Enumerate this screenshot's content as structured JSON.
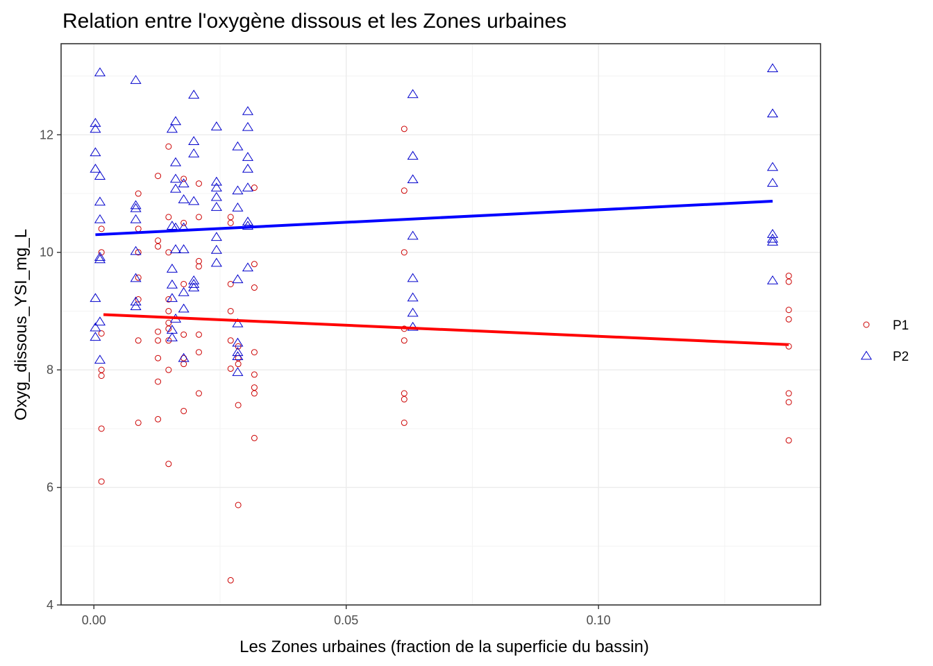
{
  "chart_data": {
    "type": "scatter",
    "title": "Relation entre l'oxygène dissous et les Zones urbaines",
    "xlabel": "Les Zones urbaines (fraction de la superficie du bassin)",
    "ylabel": "Oxyg_dissous_YSI_mg_L",
    "xlim": [
      -0.0065,
      0.144
    ],
    "ylim": [
      4.0,
      13.55
    ],
    "x_ticks": [
      0.0,
      0.05,
      0.1
    ],
    "x_tick_labels": [
      "0.00",
      "0.05",
      "0.10"
    ],
    "y_ticks": [
      4,
      6,
      8,
      10,
      12
    ],
    "y_tick_labels": [
      "4",
      "6",
      "8",
      "10",
      "12"
    ],
    "grid": true,
    "legend_position": "right",
    "series": [
      {
        "name": "P1",
        "marker": "circle",
        "color": "#cc0000",
        "trend_color": "#ff0000",
        "trend": {
          "x": [
            0.0019,
            0.1377
          ],
          "y": [
            8.94,
            8.43
          ]
        },
        "points": [
          [
            0.0015,
            10.4
          ],
          [
            0.0015,
            10.0
          ],
          [
            0.0015,
            8.62
          ],
          [
            0.0015,
            8.0
          ],
          [
            0.0015,
            7.9
          ],
          [
            0.0015,
            7.0
          ],
          [
            0.0015,
            6.1
          ],
          [
            0.0088,
            11.0
          ],
          [
            0.0088,
            10.4
          ],
          [
            0.0088,
            10.0
          ],
          [
            0.0088,
            9.57
          ],
          [
            0.0088,
            9.2
          ],
          [
            0.0088,
            8.5
          ],
          [
            0.0088,
            7.1
          ],
          [
            0.0127,
            11.3
          ],
          [
            0.0127,
            10.2
          ],
          [
            0.0127,
            10.1
          ],
          [
            0.0127,
            8.65
          ],
          [
            0.0127,
            8.5
          ],
          [
            0.0127,
            8.2
          ],
          [
            0.0127,
            7.8
          ],
          [
            0.0127,
            7.16
          ],
          [
            0.0148,
            11.8
          ],
          [
            0.0148,
            10.6
          ],
          [
            0.0148,
            10.0
          ],
          [
            0.0148,
            9.2
          ],
          [
            0.0148,
            9.0
          ],
          [
            0.0148,
            8.8
          ],
          [
            0.0148,
            8.7
          ],
          [
            0.0148,
            8.5
          ],
          [
            0.0148,
            8.0
          ],
          [
            0.0148,
            6.4
          ],
          [
            0.0178,
            11.25
          ],
          [
            0.0178,
            10.5
          ],
          [
            0.0178,
            9.46
          ],
          [
            0.0178,
            8.6
          ],
          [
            0.0178,
            8.2
          ],
          [
            0.0178,
            8.1
          ],
          [
            0.0178,
            7.3
          ],
          [
            0.0208,
            11.17
          ],
          [
            0.0208,
            10.6
          ],
          [
            0.0208,
            9.85
          ],
          [
            0.0208,
            9.76
          ],
          [
            0.0208,
            8.6
          ],
          [
            0.0208,
            8.3
          ],
          [
            0.0208,
            7.6
          ],
          [
            0.0271,
            10.6
          ],
          [
            0.0271,
            10.5
          ],
          [
            0.0271,
            9.46
          ],
          [
            0.0271,
            9.0
          ],
          [
            0.0271,
            8.5
          ],
          [
            0.0271,
            8.02
          ],
          [
            0.0271,
            4.42
          ],
          [
            0.0286,
            8.4
          ],
          [
            0.0286,
            8.2
          ],
          [
            0.0286,
            8.1
          ],
          [
            0.0286,
            7.4
          ],
          [
            0.0286,
            5.7
          ],
          [
            0.0318,
            11.1
          ],
          [
            0.0318,
            9.8
          ],
          [
            0.0318,
            9.4
          ],
          [
            0.0318,
            8.3
          ],
          [
            0.0318,
            7.92
          ],
          [
            0.0318,
            7.7
          ],
          [
            0.0318,
            7.6
          ],
          [
            0.0318,
            6.84
          ],
          [
            0.0615,
            12.1
          ],
          [
            0.0615,
            11.05
          ],
          [
            0.0615,
            10.0
          ],
          [
            0.0615,
            8.7
          ],
          [
            0.0615,
            8.5
          ],
          [
            0.0615,
            7.6
          ],
          [
            0.0615,
            7.5
          ],
          [
            0.0615,
            7.1
          ],
          [
            0.1377,
            9.6
          ],
          [
            0.1377,
            9.5
          ],
          [
            0.1377,
            9.02
          ],
          [
            0.1377,
            8.86
          ],
          [
            0.1377,
            8.4
          ],
          [
            0.1377,
            7.6
          ],
          [
            0.1377,
            7.45
          ],
          [
            0.1377,
            6.8
          ]
        ]
      },
      {
        "name": "P2",
        "marker": "triangle",
        "color": "#0000cc",
        "trend_color": "#0000ff",
        "trend": {
          "x": [
            0.0003,
            0.1345
          ],
          "y": [
            10.3,
            10.87
          ]
        },
        "points": [
          [
            0.0003,
            12.2
          ],
          [
            0.0003,
            12.1
          ],
          [
            0.0003,
            11.7
          ],
          [
            0.0003,
            11.42
          ],
          [
            0.0003,
            9.22
          ],
          [
            0.0003,
            8.72
          ],
          [
            0.0003,
            8.56
          ],
          [
            0.0012,
            13.06
          ],
          [
            0.0012,
            11.3
          ],
          [
            0.0012,
            10.86
          ],
          [
            0.0012,
            10.56
          ],
          [
            0.0012,
            9.92
          ],
          [
            0.0012,
            9.88
          ],
          [
            0.0012,
            8.82
          ],
          [
            0.0012,
            8.17
          ],
          [
            0.0083,
            12.93
          ],
          [
            0.0083,
            10.8
          ],
          [
            0.0083,
            10.75
          ],
          [
            0.0083,
            10.56
          ],
          [
            0.0083,
            10.02
          ],
          [
            0.0083,
            9.56
          ],
          [
            0.0083,
            9.16
          ],
          [
            0.0083,
            9.08
          ],
          [
            0.0155,
            12.1
          ],
          [
            0.0155,
            10.45
          ],
          [
            0.0155,
            9.72
          ],
          [
            0.0155,
            9.45
          ],
          [
            0.0155,
            9.22
          ],
          [
            0.0155,
            8.68
          ],
          [
            0.0155,
            8.55
          ],
          [
            0.0162,
            12.23
          ],
          [
            0.0162,
            11.53
          ],
          [
            0.0162,
            11.25
          ],
          [
            0.0162,
            11.08
          ],
          [
            0.0162,
            10.42
          ],
          [
            0.0162,
            10.05
          ],
          [
            0.0162,
            8.87
          ],
          [
            0.0178,
            11.17
          ],
          [
            0.0178,
            10.9
          ],
          [
            0.0178,
            10.42
          ],
          [
            0.0178,
            10.05
          ],
          [
            0.0178,
            9.32
          ],
          [
            0.0178,
            9.04
          ],
          [
            0.0178,
            8.2
          ],
          [
            0.0198,
            12.68
          ],
          [
            0.0198,
            11.89
          ],
          [
            0.0198,
            11.68
          ],
          [
            0.0198,
            10.87
          ],
          [
            0.0198,
            9.52
          ],
          [
            0.0198,
            9.46
          ],
          [
            0.0198,
            9.4
          ],
          [
            0.0243,
            12.14
          ],
          [
            0.0243,
            11.2
          ],
          [
            0.0243,
            11.1
          ],
          [
            0.0243,
            10.94
          ],
          [
            0.0243,
            10.77
          ],
          [
            0.0243,
            10.26
          ],
          [
            0.0243,
            10.04
          ],
          [
            0.0243,
            9.82
          ],
          [
            0.0285,
            11.8
          ],
          [
            0.0285,
            11.05
          ],
          [
            0.0285,
            10.76
          ],
          [
            0.0285,
            9.54
          ],
          [
            0.0285,
            8.79
          ],
          [
            0.0285,
            8.46
          ],
          [
            0.0285,
            8.3
          ],
          [
            0.0285,
            8.23
          ],
          [
            0.0285,
            7.96
          ],
          [
            0.0305,
            12.4
          ],
          [
            0.0305,
            12.13
          ],
          [
            0.0305,
            11.62
          ],
          [
            0.0305,
            11.42
          ],
          [
            0.0305,
            11.1
          ],
          [
            0.0305,
            10.52
          ],
          [
            0.0305,
            10.45
          ],
          [
            0.0305,
            9.74
          ],
          [
            0.0632,
            12.69
          ],
          [
            0.0632,
            11.64
          ],
          [
            0.0632,
            11.24
          ],
          [
            0.0632,
            10.28
          ],
          [
            0.0632,
            9.56
          ],
          [
            0.0632,
            9.23
          ],
          [
            0.0632,
            8.97
          ],
          [
            0.0632,
            8.73
          ],
          [
            0.1345,
            13.13
          ],
          [
            0.1345,
            12.36
          ],
          [
            0.1345,
            11.45
          ],
          [
            0.1345,
            11.18
          ],
          [
            0.1345,
            10.31
          ],
          [
            0.1345,
            10.23
          ],
          [
            0.1345,
            10.18
          ],
          [
            0.1345,
            9.52
          ]
        ]
      }
    ]
  }
}
